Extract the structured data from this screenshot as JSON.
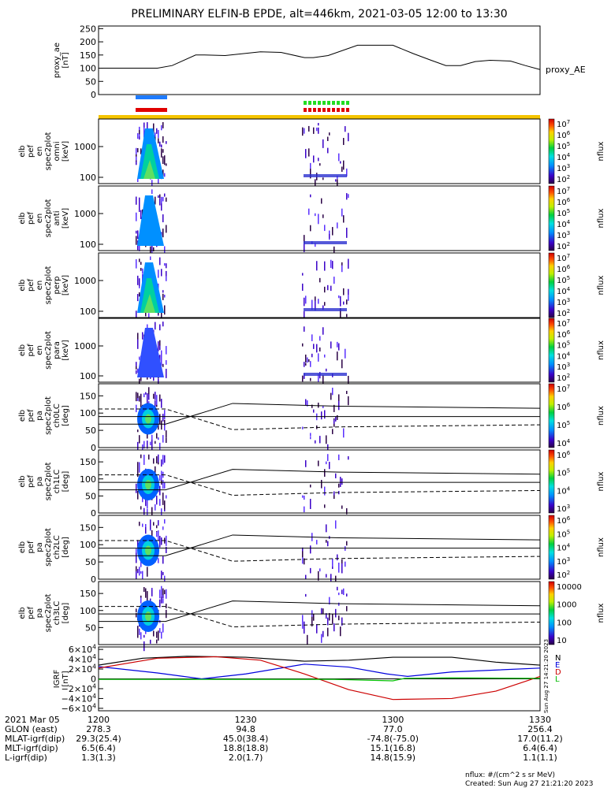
{
  "title": "PRELIMINARY ELFIN-B EPDE, alt=446km, 2021-03-05 12:00 to 13:30",
  "chart_data": [
    {
      "type": "line",
      "ylabel": "proxy_ae [nT]",
      "yticks": [
        "250",
        "200",
        "150",
        "100",
        "50",
        "0"
      ],
      "ylim": [
        0,
        260
      ],
      "series": [
        {
          "name": "proxy_AE",
          "x": [
            0,
            0.1,
            0.2,
            0.25,
            0.33,
            0.36,
            0.43,
            0.55,
            0.62,
            0.7,
            0.73,
            0.78,
            0.88,
            0.94,
            1.0,
            1.07,
            1.13,
            1.18,
            1.23,
            1.28,
            1.33,
            1.4,
            1.45,
            1.5
          ],
          "y": [
            100,
            100,
            100,
            110,
            150,
            150,
            148,
            162,
            160,
            140,
            140,
            148,
            187,
            187,
            187,
            155,
            130,
            110,
            110,
            125,
            130,
            127,
            110,
            95
          ]
        }
      ]
    },
    {
      "type": "heatmap",
      "name": "elb pef en spec2plot omni",
      "ylabel": "elb pef en spec2plot omni [keV]",
      "yticks": [
        "1000",
        "100"
      ],
      "colorbar": {
        "label": "nflux",
        "ticks": [
          "10^7",
          "10^6",
          "10^5",
          "10^4",
          "10^3",
          "10^2"
        ]
      }
    },
    {
      "type": "heatmap",
      "name": "elb pef en spec2plot anti",
      "ylabel": "elb pef en spec2plot anti [keV]",
      "yticks": [
        "1000",
        "100"
      ],
      "colorbar": {
        "label": "nflux",
        "ticks": [
          "10^7",
          "10^6",
          "10^5",
          "10^4",
          "10^3",
          "10^2"
        ]
      }
    },
    {
      "type": "heatmap",
      "name": "elb pef en spec2plot perp",
      "ylabel": "elb pef en spec2plot perp [keV]",
      "yticks": [
        "1000",
        "100"
      ],
      "colorbar": {
        "label": "nflux",
        "ticks": [
          "10^7",
          "10^6",
          "10^5",
          "10^4",
          "10^3",
          "10^2"
        ]
      }
    },
    {
      "type": "heatmap",
      "name": "elb pef en spec2plot para",
      "ylabel": "elb pef en spec2plot para [keV]",
      "yticks": [
        "1000",
        "100"
      ],
      "colorbar": {
        "label": "nflux",
        "ticks": [
          "10^7",
          "10^6",
          "10^5",
          "10^4",
          "10^3",
          "10^2"
        ]
      }
    },
    {
      "type": "heatmap",
      "name": "elb pef pa spec2plot ch0LC",
      "ylabel": "elb pef pa spec2plot ch0LC [deg]",
      "yticks": [
        "150",
        "100",
        "50",
        "0"
      ],
      "colorbar": {
        "label": "nflux",
        "ticks": [
          "10^7",
          "10^6",
          "10^5",
          "10^4"
        ]
      }
    },
    {
      "type": "heatmap",
      "name": "elb pef pa spec2plot ch1LC",
      "ylabel": "elb pef pa spec2plot ch1LC [deg]",
      "yticks": [
        "150",
        "100",
        "50",
        "0"
      ],
      "colorbar": {
        "label": "nflux",
        "ticks": [
          "10^6",
          "10^5",
          "10^4",
          "10^3"
        ]
      }
    },
    {
      "type": "heatmap",
      "name": "elb pef pa spec2plot ch2LC",
      "ylabel": "elb pef pa spec2plot ch2LC [deg]",
      "yticks": [
        "150",
        "100",
        "50",
        "0"
      ],
      "colorbar": {
        "label": "nflux",
        "ticks": [
          "10^6",
          "10^5",
          "10^4",
          "10^3",
          "10^2"
        ]
      }
    },
    {
      "type": "heatmap",
      "name": "elb pef pa spec2plot ch3LC",
      "ylabel": "elb pef pa spec2plot ch3LC [deg]",
      "yticks": [
        "150",
        "100",
        "50"
      ],
      "colorbar": {
        "label": "nflux",
        "ticks": [
          "10000",
          "1000",
          "100",
          "10"
        ]
      }
    },
    {
      "type": "line",
      "ylabel": "IGRF [nT]",
      "yticks": [
        "6×10^4",
        "4×10^4",
        "2×10^4",
        "0",
        "−2×10^4",
        "−4×10^4",
        "−6×10^4"
      ],
      "ylim": [
        -65000,
        65000
      ],
      "legend": [
        "N",
        "E",
        "D",
        "L"
      ],
      "series_colors": [
        "#000000",
        "#0000dd",
        "#cc0000",
        "#00bb00"
      ]
    }
  ],
  "bottom_axis": {
    "labels": [
      "2021 Mar 05",
      "GLON (east)",
      "MLAT-igrf(dip)",
      "MLT-igrf(dip)",
      "L-igrf(dip)"
    ],
    "columns": [
      {
        "time": "1200",
        "glon": "278.3",
        "mlat": "29.3(25.4)",
        "mlt": "6.5(6.4)",
        "l": "1.3(1.3)"
      },
      {
        "time": "1230",
        "glon": "94.8",
        "mlat": "45.0(38.4)",
        "mlt": "18.8(18.8)",
        "l": "2.0(1.7)"
      },
      {
        "time": "1300",
        "glon": "77.0",
        "mlat": "-74.8(-75.0)",
        "mlt": "15.1(16.8)",
        "l": "14.8(15.9)"
      },
      {
        "time": "1330",
        "glon": "256.4",
        "mlat": "17.0(11.2)",
        "mlt": "6.4(6.4)",
        "l": "1.1(1.1)"
      }
    ]
  },
  "footer": {
    "units": "nflux: #/(cm^2 s sr MeV)",
    "created": "Created: Sun Aug 27 21:21:20 2023",
    "side_stamp": "Sun Aug 27 14:21:20 2023"
  }
}
